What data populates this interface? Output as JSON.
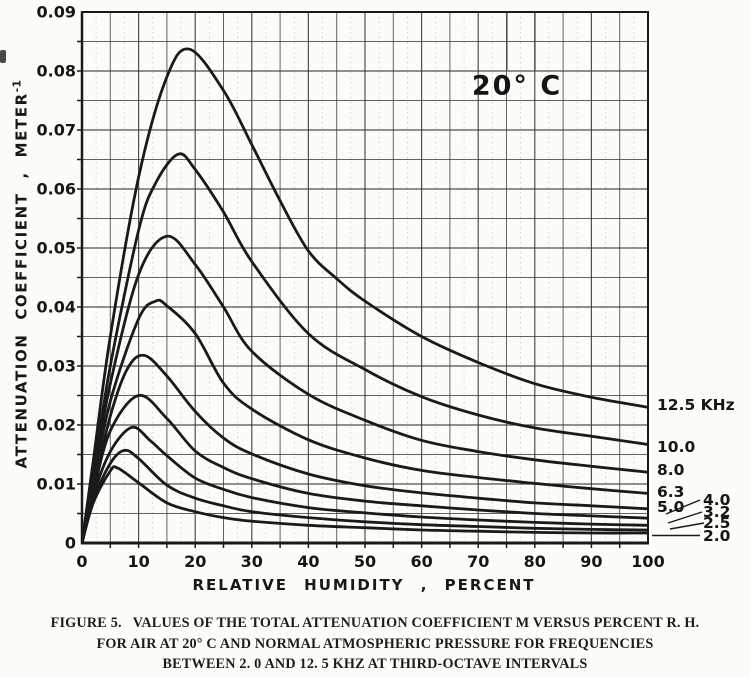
{
  "page": {
    "background": "#fcfcf9",
    "ink": "#1a1a1a",
    "grid_color": "#3d3d3d"
  },
  "chart_data": {
    "type": "line",
    "annotation": "20° C",
    "xlabel": "RELATIVE HUMIDITY , PERCENT",
    "ylabel": "ATTENUATION COEFFICIENT , METER",
    "ylabel_exponent": "-1",
    "xlim": [
      0,
      100
    ],
    "ylim": [
      0,
      0.09
    ],
    "grid": true,
    "x_grid_step": 5,
    "x_grid_minor_step": 2.5,
    "y_grid_step": 0.005,
    "legend_position": "right-margin",
    "x_ticks": [
      {
        "value": 0,
        "label": "0"
      },
      {
        "value": 10,
        "label": "10"
      },
      {
        "value": 20,
        "label": "20"
      },
      {
        "value": 30,
        "label": "30"
      },
      {
        "value": 40,
        "label": "40"
      },
      {
        "value": 50,
        "label": "50"
      },
      {
        "value": 60,
        "label": "60"
      },
      {
        "value": 70,
        "label": "70"
      },
      {
        "value": 80,
        "label": "80"
      },
      {
        "value": 90,
        "label": "90"
      },
      {
        "value": 100,
        "label": "100"
      }
    ],
    "y_ticks": [
      {
        "value": 0,
        "label": "0"
      },
      {
        "value": 0.01,
        "label": "0.01"
      },
      {
        "value": 0.02,
        "label": "0.02"
      },
      {
        "value": 0.03,
        "label": "0.03"
      },
      {
        "value": 0.04,
        "label": "0.04"
      },
      {
        "value": 0.05,
        "label": "0.05"
      },
      {
        "value": 0.06,
        "label": "0.06"
      },
      {
        "value": 0.07,
        "label": "0.07"
      },
      {
        "value": 0.08,
        "label": "0.08"
      },
      {
        "value": 0.09,
        "label": "0.09"
      }
    ],
    "series": [
      {
        "name": "12.5 KHz",
        "frequency_khz": 12.5,
        "peak": {
          "rh": 19,
          "value": 0.0837
        },
        "points": [
          [
            0,
            0
          ],
          [
            2,
            0.014
          ],
          [
            5,
            0.035
          ],
          [
            10,
            0.062
          ],
          [
            15,
            0.079
          ],
          [
            19,
            0.0837
          ],
          [
            25,
            0.0767
          ],
          [
            30,
            0.0675
          ],
          [
            35,
            0.058
          ],
          [
            40,
            0.0495
          ],
          [
            45,
            0.0448
          ],
          [
            50,
            0.041
          ],
          [
            60,
            0.035
          ],
          [
            70,
            0.0306
          ],
          [
            80,
            0.027
          ],
          [
            90,
            0.0247
          ],
          [
            100,
            0.023
          ]
        ]
      },
      {
        "name": "10.0",
        "frequency_khz": 10.0,
        "peak": {
          "rh": 17,
          "value": 0.0659
        },
        "points": [
          [
            0,
            0
          ],
          [
            2,
            0.012
          ],
          [
            5,
            0.03
          ],
          [
            10,
            0.053
          ],
          [
            13,
            0.061
          ],
          [
            17,
            0.0659
          ],
          [
            20,
            0.0633
          ],
          [
            25,
            0.0561
          ],
          [
            30,
            0.0477
          ],
          [
            40,
            0.0355
          ],
          [
            50,
            0.0294
          ],
          [
            60,
            0.0248
          ],
          [
            70,
            0.0217
          ],
          [
            80,
            0.0195
          ],
          [
            90,
            0.0181
          ],
          [
            100,
            0.0167
          ]
        ]
      },
      {
        "name": "8.0",
        "frequency_khz": 8.0,
        "peak": {
          "rh": 15,
          "value": 0.052
        },
        "points": [
          [
            0,
            0
          ],
          [
            2,
            0.011
          ],
          [
            5,
            0.027
          ],
          [
            10,
            0.0455
          ],
          [
            15,
            0.052
          ],
          [
            20,
            0.0472
          ],
          [
            25,
            0.04
          ],
          [
            30,
            0.0325
          ],
          [
            40,
            0.0252
          ],
          [
            50,
            0.0208
          ],
          [
            60,
            0.0174
          ],
          [
            70,
            0.0155
          ],
          [
            80,
            0.0141
          ],
          [
            90,
            0.013
          ],
          [
            100,
            0.012
          ]
        ]
      },
      {
        "name": "6.3",
        "frequency_khz": 6.3,
        "peak": {
          "rh": 13,
          "value": 0.041
        },
        "points": [
          [
            0,
            0
          ],
          [
            2,
            0.01
          ],
          [
            5,
            0.024
          ],
          [
            10,
            0.038
          ],
          [
            13,
            0.041
          ],
          [
            15,
            0.0402
          ],
          [
            20,
            0.0355
          ],
          [
            25,
            0.0271
          ],
          [
            30,
            0.0227
          ],
          [
            40,
            0.0175
          ],
          [
            50,
            0.0144
          ],
          [
            60,
            0.0123
          ],
          [
            70,
            0.0111
          ],
          [
            80,
            0.0101
          ],
          [
            90,
            0.0092
          ],
          [
            100,
            0.0084
          ]
        ]
      },
      {
        "name": "5.0",
        "frequency_khz": 5.0,
        "peak": {
          "rh": 11,
          "value": 0.0318
        },
        "points": [
          [
            0,
            0
          ],
          [
            2,
            0.009
          ],
          [
            5,
            0.0215
          ],
          [
            8,
            0.0295
          ],
          [
            11,
            0.0318
          ],
          [
            15,
            0.0283
          ],
          [
            20,
            0.0223
          ],
          [
            25,
            0.0178
          ],
          [
            30,
            0.0151
          ],
          [
            40,
            0.0117
          ],
          [
            50,
            0.0097
          ],
          [
            60,
            0.0085
          ],
          [
            70,
            0.0076
          ],
          [
            80,
            0.0068
          ],
          [
            90,
            0.0063
          ],
          [
            100,
            0.0058
          ]
        ]
      },
      {
        "name": "4.0",
        "frequency_khz": 4.0,
        "peak": {
          "rh": 10,
          "value": 0.025
        },
        "points": [
          [
            0,
            0
          ],
          [
            2,
            0.0085
          ],
          [
            5,
            0.019
          ],
          [
            10,
            0.025
          ],
          [
            15,
            0.0211
          ],
          [
            20,
            0.0156
          ],
          [
            25,
            0.0128
          ],
          [
            30,
            0.0109
          ],
          [
            40,
            0.0084
          ],
          [
            50,
            0.0071
          ],
          [
            60,
            0.0063
          ],
          [
            70,
            0.0056
          ],
          [
            80,
            0.005
          ],
          [
            90,
            0.0046
          ],
          [
            100,
            0.0042
          ]
        ]
      },
      {
        "name": "3.2",
        "frequency_khz": 3.2,
        "peak": {
          "rh": 8.8,
          "value": 0.0196
        },
        "points": [
          [
            0,
            0
          ],
          [
            2,
            0.008
          ],
          [
            5,
            0.0155
          ],
          [
            8.8,
            0.0196
          ],
          [
            12,
            0.0174
          ],
          [
            15,
            0.0148
          ],
          [
            20,
            0.011
          ],
          [
            25,
            0.0091
          ],
          [
            30,
            0.0077
          ],
          [
            40,
            0.006
          ],
          [
            50,
            0.0051
          ],
          [
            60,
            0.0044
          ],
          [
            70,
            0.0039
          ],
          [
            80,
            0.0035
          ],
          [
            90,
            0.0032
          ],
          [
            100,
            0.003
          ]
        ]
      },
      {
        "name": "2.5",
        "frequency_khz": 2.5,
        "peak": {
          "rh": 7.5,
          "value": 0.0157
        },
        "points": [
          [
            0,
            0
          ],
          [
            2,
            0.0072
          ],
          [
            5,
            0.0135
          ],
          [
            7.5,
            0.0157
          ],
          [
            10,
            0.0143
          ],
          [
            15,
            0.0098
          ],
          [
            20,
            0.0076
          ],
          [
            25,
            0.0063
          ],
          [
            30,
            0.0053
          ],
          [
            40,
            0.0043
          ],
          [
            50,
            0.0036
          ],
          [
            60,
            0.0031
          ],
          [
            70,
            0.0028
          ],
          [
            80,
            0.0025
          ],
          [
            90,
            0.0023
          ],
          [
            100,
            0.0022
          ]
        ]
      },
      {
        "name": "2.0",
        "frequency_khz": 2.0,
        "peak": {
          "rh": 6.3,
          "value": 0.0127
        },
        "points": [
          [
            0,
            0
          ],
          [
            2,
            0.0068
          ],
          [
            5,
            0.0122
          ],
          [
            6.3,
            0.0127
          ],
          [
            10,
            0.0102
          ],
          [
            15,
            0.0068
          ],
          [
            20,
            0.0053
          ],
          [
            25,
            0.0043
          ],
          [
            30,
            0.0037
          ],
          [
            40,
            0.003
          ],
          [
            50,
            0.0026
          ],
          [
            60,
            0.0022
          ],
          [
            70,
            0.002
          ],
          [
            80,
            0.0018
          ],
          [
            90,
            0.0017
          ],
          [
            100,
            0.0017
          ]
        ]
      }
    ]
  },
  "caption": {
    "line1": "FIGURE 5.   VALUES OF THE TOTAL ATTENUATION COEFFICIENT M VERSUS PERCENT R. H.",
    "line2": "FOR AIR AT 20° C AND NORMAL ATMOSPHERIC PRESSURE FOR FREQUENCIES",
    "line3": "BETWEEN 2. 0 AND 12. 5 KHZ AT THIRD-OCTAVE INTERVALS"
  }
}
